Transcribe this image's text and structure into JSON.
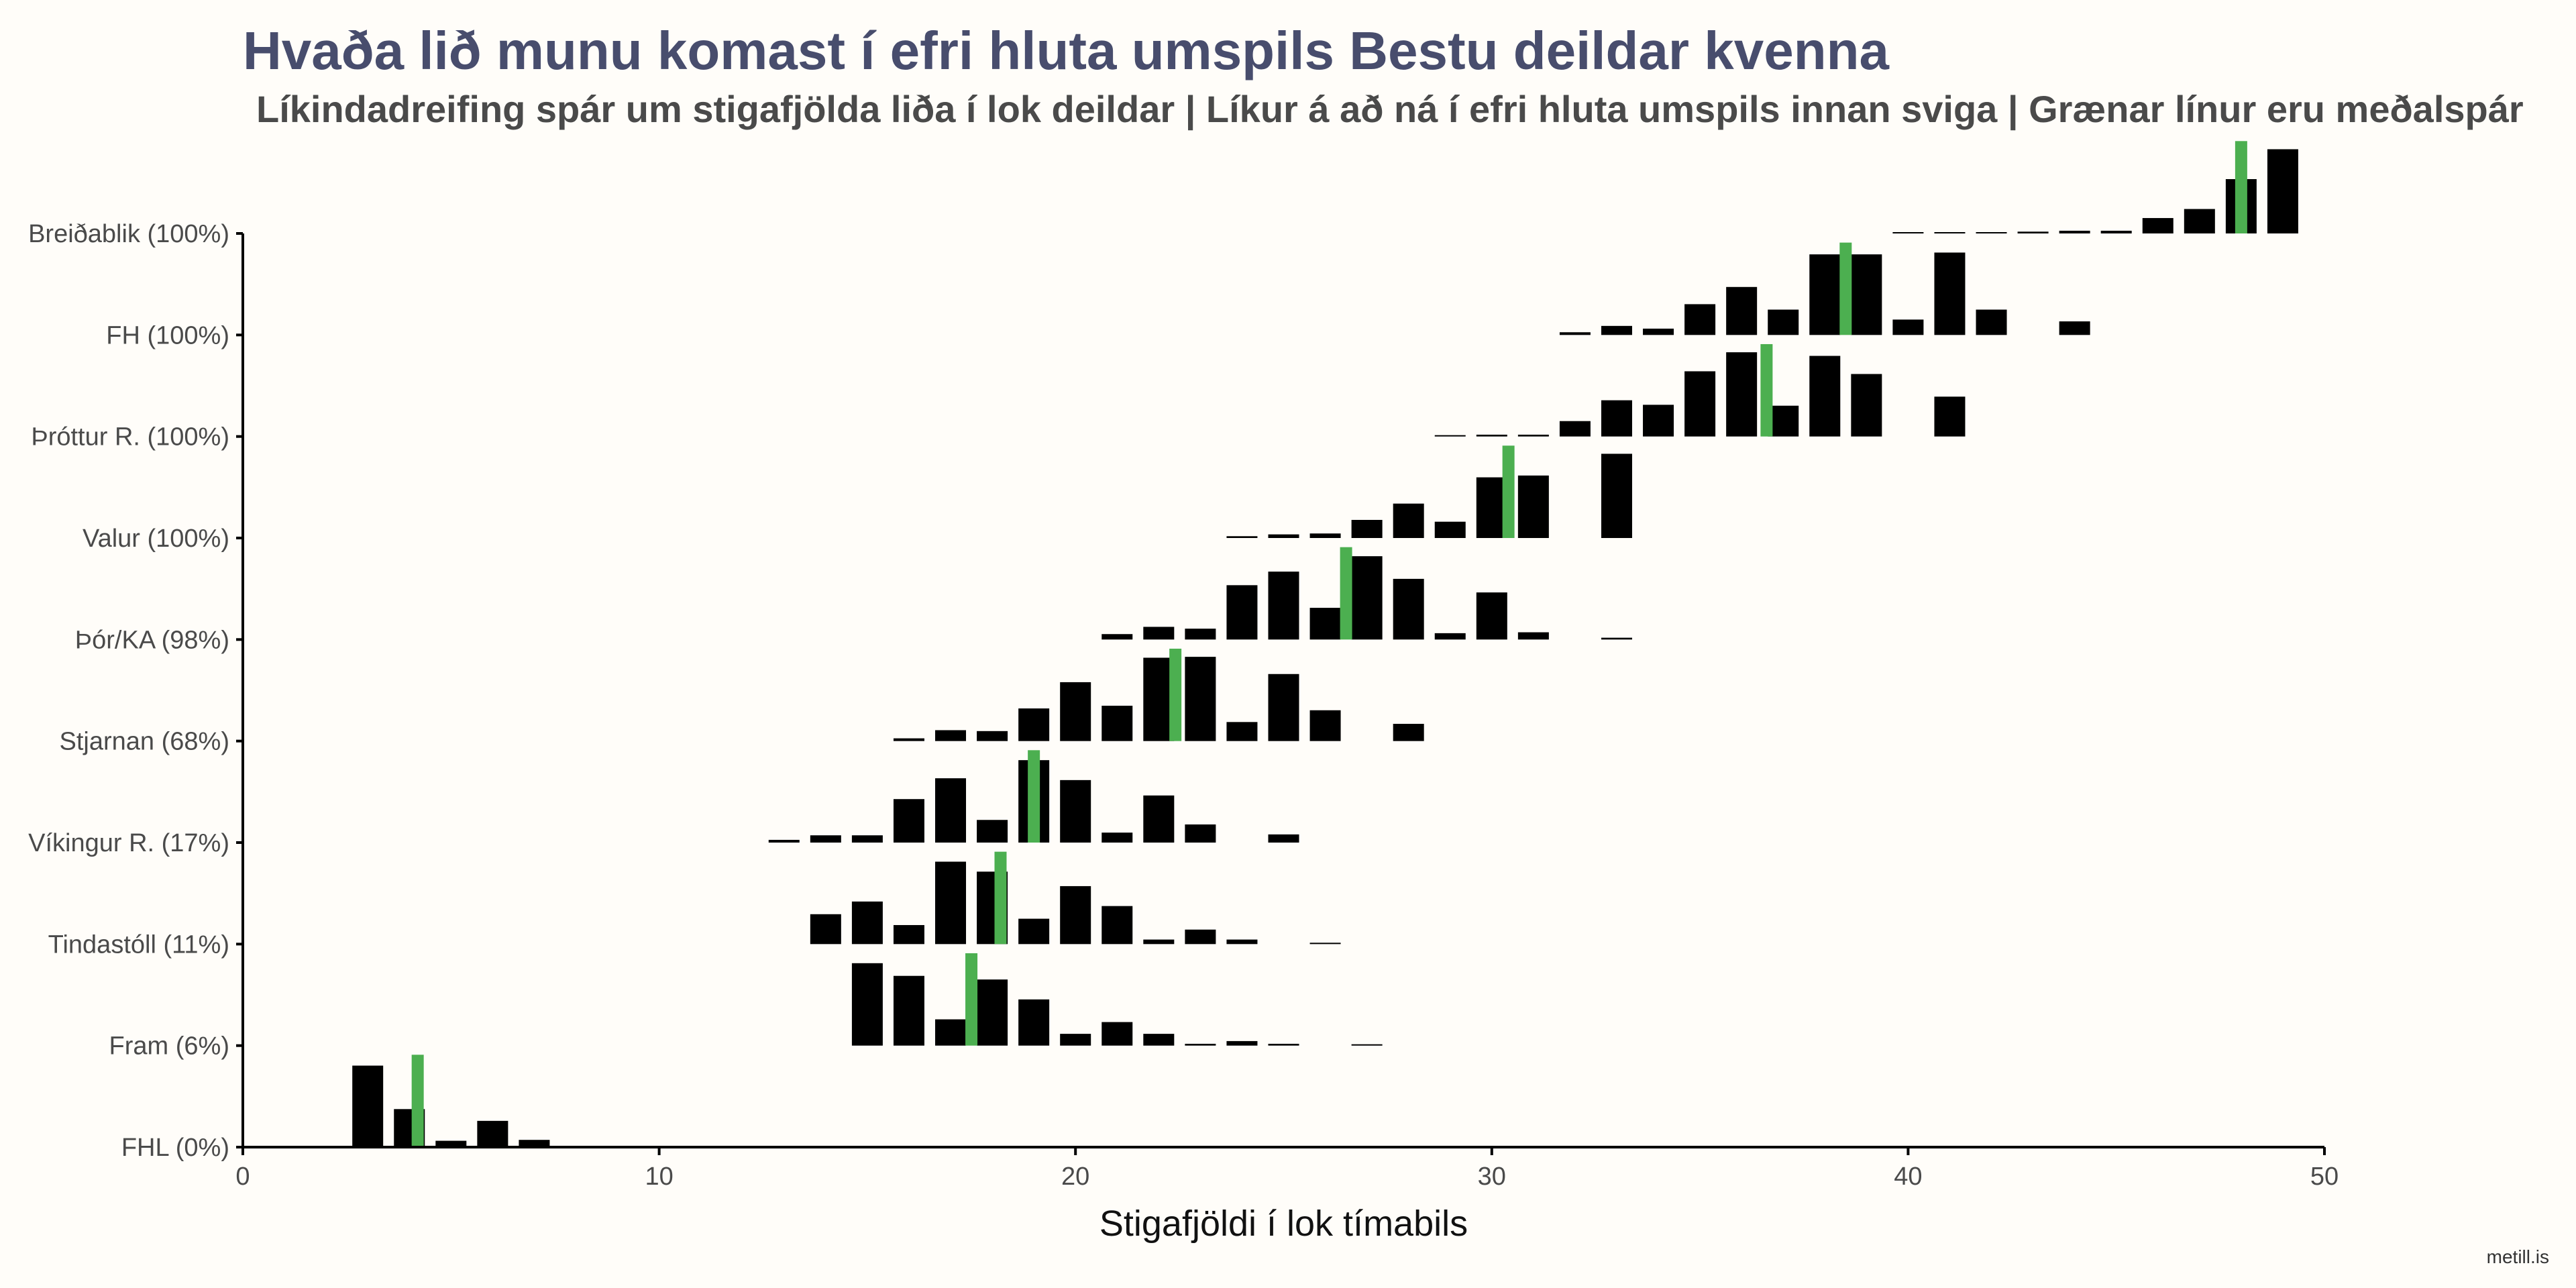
{
  "title": "Hvaða lið munu komast í efri hluta umspils Bestu deildar kvenna",
  "subtitle": "Líkindadreifing spár um stigafjölda liða í lok deildar | Líkur á að ná í efri hluta umspils innan sviga | Grænar línur eru meðalspár",
  "credit": "metill.is",
  "colors": {
    "bars": "#000000",
    "mean_line": "#4caf50",
    "background": "#fffdf9",
    "title": "#484d6d"
  },
  "chart_data": {
    "type": "bar",
    "subtype": "ridgeline-histogram",
    "title": "Hvaða lið munu komast í efri hluta umspils Bestu deildar kvenna",
    "subtitle": "Líkindadreifing spár um stigafjölda liða í lok deildar | Líkur á að ná í efri hluta umspils innan sviga | Grænar línur eru meðalspár",
    "xlabel": "Stigafjöldi í lok tímabils",
    "ylabel": "",
    "xlim": [
      0,
      50
    ],
    "x_ticks": [
      0,
      10,
      20,
      30,
      40,
      50
    ],
    "grid": false,
    "legend": "none",
    "series": [
      {
        "name": "Breiðablik (100%)",
        "mean": 48.0,
        "bars": [
          [
            40,
            0.005
          ],
          [
            41,
            0.005
          ],
          [
            42,
            0.005
          ],
          [
            43,
            0.02
          ],
          [
            44,
            0.03
          ],
          [
            45,
            0.03
          ],
          [
            46,
            0.17
          ],
          [
            47,
            0.27
          ],
          [
            48,
            0.6
          ],
          [
            49,
            0.93
          ]
        ]
      },
      {
        "name": "FH (100%)",
        "mean": 38.5,
        "bars": [
          [
            32,
            0.03
          ],
          [
            33,
            0.1
          ],
          [
            34,
            0.07
          ],
          [
            35,
            0.34
          ],
          [
            36,
            0.53
          ],
          [
            37,
            0.28
          ],
          [
            38,
            0.89
          ],
          [
            39,
            0.89
          ],
          [
            40,
            0.17
          ],
          [
            41,
            0.91
          ],
          [
            42,
            0.28
          ],
          [
            44,
            0.15
          ]
        ]
      },
      {
        "name": "Þróttur R. (100%)",
        "mean": 36.6,
        "bars": [
          [
            29,
            0.01
          ],
          [
            30,
            0.02
          ],
          [
            31,
            0.02
          ],
          [
            32,
            0.17
          ],
          [
            33,
            0.4
          ],
          [
            34,
            0.35
          ],
          [
            35,
            0.72
          ],
          [
            36,
            0.93
          ],
          [
            37,
            0.34
          ],
          [
            38,
            0.89
          ],
          [
            39,
            0.69
          ],
          [
            41,
            0.44
          ]
        ]
      },
      {
        "name": "Valur (100%)",
        "mean": 30.4,
        "bars": [
          [
            24,
            0.02
          ],
          [
            25,
            0.04
          ],
          [
            26,
            0.05
          ],
          [
            27,
            0.2
          ],
          [
            28,
            0.38
          ],
          [
            29,
            0.18
          ],
          [
            30,
            0.67
          ],
          [
            31,
            0.69
          ],
          [
            33,
            0.93
          ]
        ]
      },
      {
        "name": "Þór/KA (98%)",
        "mean": 26.5,
        "bars": [
          [
            21,
            0.06
          ],
          [
            22,
            0.14
          ],
          [
            23,
            0.12
          ],
          [
            24,
            0.6
          ],
          [
            25,
            0.75
          ],
          [
            26,
            0.35
          ],
          [
            27,
            0.92
          ],
          [
            28,
            0.67
          ],
          [
            29,
            0.07
          ],
          [
            30,
            0.52
          ],
          [
            31,
            0.08
          ],
          [
            33,
            0.02
          ]
        ]
      },
      {
        "name": "Stjarnan (68%)",
        "mean": 22.4,
        "bars": [
          [
            16,
            0.03
          ],
          [
            17,
            0.12
          ],
          [
            18,
            0.11
          ],
          [
            19,
            0.36
          ],
          [
            20,
            0.65
          ],
          [
            21,
            0.39
          ],
          [
            22,
            0.92
          ],
          [
            23,
            0.93
          ],
          [
            24,
            0.21
          ],
          [
            25,
            0.74
          ],
          [
            26,
            0.34
          ],
          [
            28,
            0.19
          ]
        ]
      },
      {
        "name": "Víkingur R. (17%)",
        "mean": 19.0,
        "bars": [
          [
            13,
            0.03
          ],
          [
            14,
            0.08
          ],
          [
            15,
            0.08
          ],
          [
            16,
            0.48
          ],
          [
            17,
            0.71
          ],
          [
            18,
            0.25
          ],
          [
            19,
            0.91
          ],
          [
            20,
            0.69
          ],
          [
            21,
            0.11
          ],
          [
            22,
            0.52
          ],
          [
            23,
            0.2
          ],
          [
            25,
            0.09
          ]
        ]
      },
      {
        "name": "Tindastóll (11%)",
        "mean": 18.2,
        "bars": [
          [
            14,
            0.33
          ],
          [
            15,
            0.47
          ],
          [
            16,
            0.21
          ],
          [
            17,
            0.91
          ],
          [
            18,
            0.8
          ],
          [
            19,
            0.28
          ],
          [
            20,
            0.64
          ],
          [
            21,
            0.42
          ],
          [
            22,
            0.05
          ],
          [
            23,
            0.16
          ],
          [
            24,
            0.05
          ],
          [
            26,
            0.01
          ]
        ]
      },
      {
        "name": "Fram (6%)",
        "mean": 17.5,
        "bars": [
          [
            15,
            0.91
          ],
          [
            16,
            0.77
          ],
          [
            17,
            0.29
          ],
          [
            18,
            0.73
          ],
          [
            19,
            0.51
          ],
          [
            20,
            0.13
          ],
          [
            21,
            0.26
          ],
          [
            22,
            0.13
          ],
          [
            23,
            0.02
          ],
          [
            24,
            0.05
          ],
          [
            25,
            0.02
          ],
          [
            27,
            0.01
          ]
        ]
      },
      {
        "name": "FHL (0%)",
        "mean": 4.2,
        "bars": [
          [
            3,
            0.9
          ],
          [
            4,
            0.42
          ],
          [
            5,
            0.07
          ],
          [
            6,
            0.29
          ],
          [
            7,
            0.08
          ],
          [
            9,
            0.01
          ]
        ]
      }
    ]
  }
}
